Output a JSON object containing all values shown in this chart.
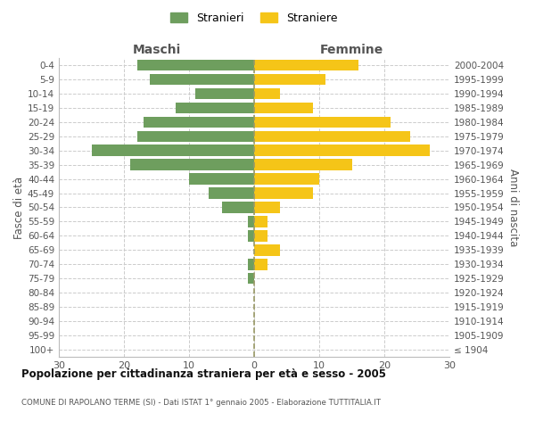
{
  "age_groups": [
    "100+",
    "95-99",
    "90-94",
    "85-89",
    "80-84",
    "75-79",
    "70-74",
    "65-69",
    "60-64",
    "55-59",
    "50-54",
    "45-49",
    "40-44",
    "35-39",
    "30-34",
    "25-29",
    "20-24",
    "15-19",
    "10-14",
    "5-9",
    "0-4"
  ],
  "birth_years": [
    "≤ 1904",
    "1905-1909",
    "1910-1914",
    "1915-1919",
    "1920-1924",
    "1925-1929",
    "1930-1934",
    "1935-1939",
    "1940-1944",
    "1945-1949",
    "1950-1954",
    "1955-1959",
    "1960-1964",
    "1965-1969",
    "1970-1974",
    "1975-1979",
    "1980-1984",
    "1985-1989",
    "1990-1994",
    "1995-1999",
    "2000-2004"
  ],
  "maschi": [
    0,
    0,
    0,
    0,
    0,
    1,
    1,
    0,
    1,
    1,
    5,
    7,
    10,
    19,
    25,
    18,
    17,
    12,
    9,
    16,
    18
  ],
  "femmine": [
    0,
    0,
    0,
    0,
    0,
    0,
    2,
    4,
    2,
    2,
    4,
    9,
    10,
    15,
    27,
    24,
    21,
    9,
    4,
    11,
    16
  ],
  "maschi_color": "#6e9e5e",
  "femmine_color": "#f5c518",
  "title": "Popolazione per cittadinanza straniera per età e sesso - 2005",
  "subtitle": "COMUNE DI RAPOLANO TERME (SI) - Dati ISTAT 1° gennaio 2005 - Elaborazione TUTTITALIA.IT",
  "ylabel_left": "Fasce di età",
  "ylabel_right": "Anni di nascita",
  "header_left": "Maschi",
  "header_right": "Femmine",
  "legend_maschi": "Stranieri",
  "legend_femmine": "Straniere",
  "xlim": 30,
  "background_color": "#ffffff",
  "grid_color": "#cccccc"
}
